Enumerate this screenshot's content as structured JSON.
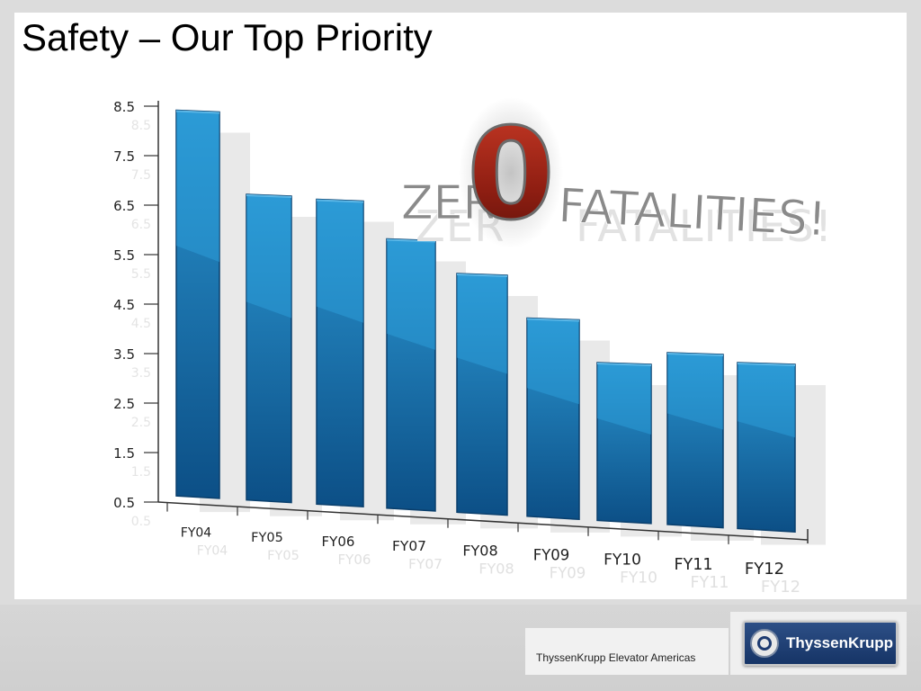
{
  "slide": {
    "title": "Safety – Our Top Priority",
    "footer_text": "ThyssenKrupp Elevator Americas",
    "logo_text": "ThyssenKrupp",
    "banner": {
      "prefix": "ZER",
      "zero": "0",
      "suffix": "FATALITIES!"
    }
  },
  "colors": {
    "bar_top": "#2a94cf",
    "bar_bottom": "#0c4f86",
    "bar_edge": "#0a3f6c",
    "zero_red": "#a32516",
    "banner_text": "#8a8a8a"
  },
  "chart_data": {
    "type": "bar",
    "categories": [
      "FY04",
      "FY05",
      "FY06",
      "FY07",
      "FY08",
      "FY09",
      "FY10",
      "FY11",
      "FY12"
    ],
    "values": [
      8.4,
      6.7,
      6.6,
      5.8,
      5.1,
      4.2,
      3.3,
      3.5,
      3.3
    ],
    "yticks": [
      "8.5",
      "7.5",
      "6.5",
      "5.5",
      "4.5",
      "3.5",
      "2.5",
      "1.5",
      "0.5"
    ],
    "ylim": [
      0.5,
      8.5
    ],
    "title": "",
    "xlabel": "",
    "ylabel": "",
    "grid": false,
    "legend": false
  }
}
